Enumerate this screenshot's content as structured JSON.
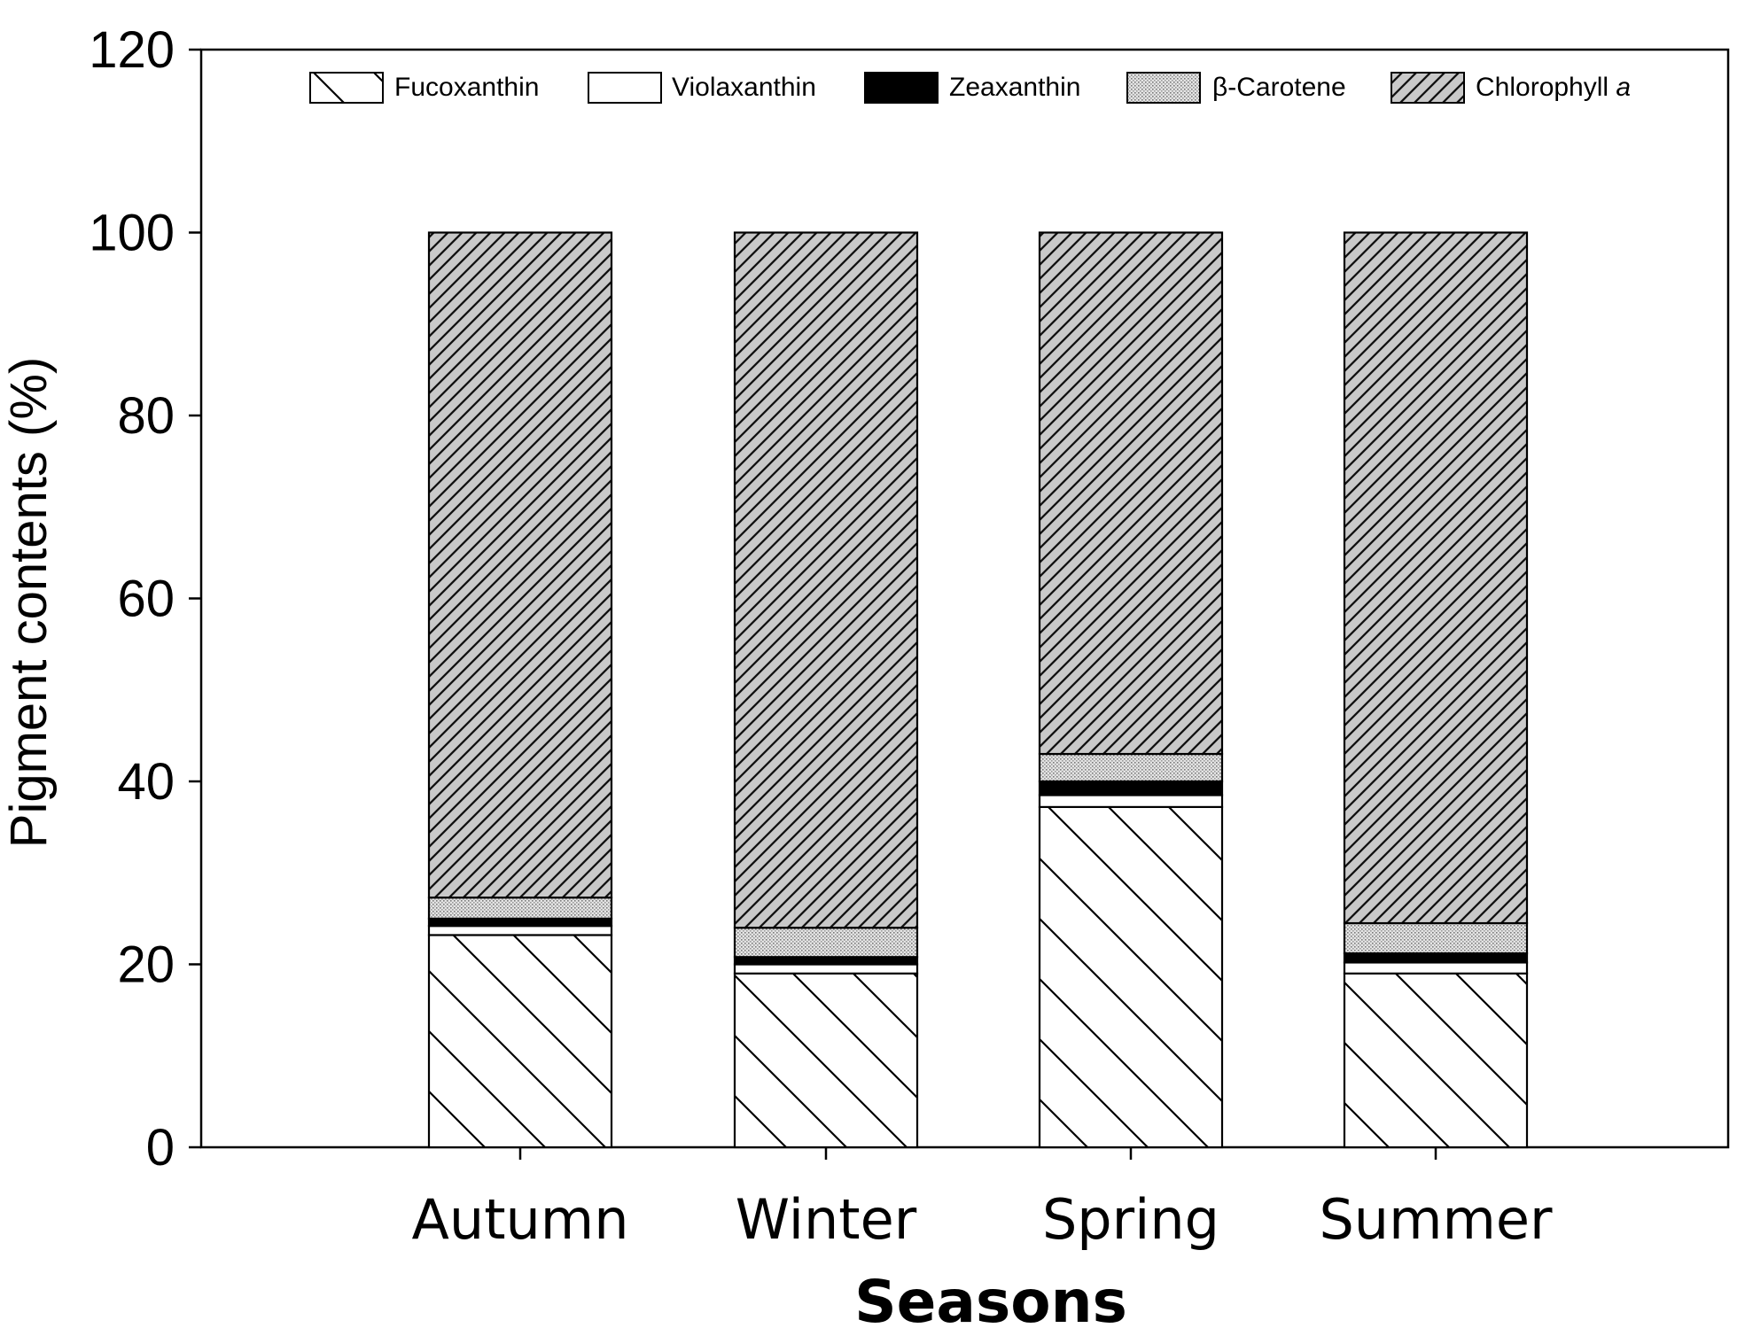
{
  "chart_data": {
    "type": "bar",
    "stacked": true,
    "title": "",
    "xlabel": "Seasons",
    "ylabel": "Pigment contents (%)",
    "ylim": [
      0,
      120
    ],
    "yticks": [
      0,
      20,
      40,
      60,
      80,
      100,
      120
    ],
    "categories": [
      "Autumn",
      "Winter",
      "Spring",
      "Summer"
    ],
    "series": [
      {
        "name": "Fucoxanthin",
        "pattern": "wide-back-diagonal",
        "values": [
          23.2,
          19.0,
          37.2,
          19.0
        ]
      },
      {
        "name": "Violaxanthin",
        "pattern": "solid-white",
        "values": [
          1.0,
          1.0,
          1.3,
          1.2
        ]
      },
      {
        "name": "Zeaxanthin",
        "pattern": "solid-black",
        "values": [
          0.8,
          0.8,
          1.5,
          1.0
        ]
      },
      {
        "name": "β-Carotene",
        "pattern": "dotted-gray",
        "values": [
          2.3,
          3.2,
          3.0,
          3.3
        ]
      },
      {
        "name": "Chlorophyll a",
        "pattern": "dense-forward-diagonal",
        "values": [
          72.7,
          76.0,
          57.0,
          75.5
        ]
      }
    ],
    "legend_position": "top",
    "grid": false
  }
}
